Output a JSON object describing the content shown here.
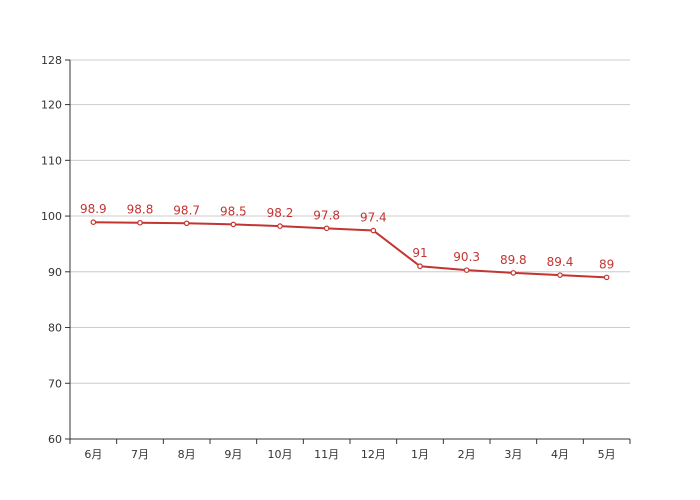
{
  "chart_data": {
    "type": "line",
    "title": "",
    "xlabel": "",
    "ylabel": "",
    "categories": [
      "6月",
      "7月",
      "8月",
      "9月",
      "10月",
      "11月",
      "12月",
      "1月",
      "2月",
      "3月",
      "4月",
      "5月"
    ],
    "series": [
      {
        "values": [
          98.9,
          98.8,
          98.7,
          98.5,
          98.2,
          97.8,
          97.4,
          91,
          90.3,
          89.8,
          89.4,
          89
        ],
        "color": "#c23531"
      }
    ],
    "ylim": [
      60,
      128
    ],
    "yticks": [
      60,
      70,
      80,
      90,
      100,
      110,
      120,
      128
    ],
    "grid": true,
    "legend": "none",
    "data_labels": true
  }
}
